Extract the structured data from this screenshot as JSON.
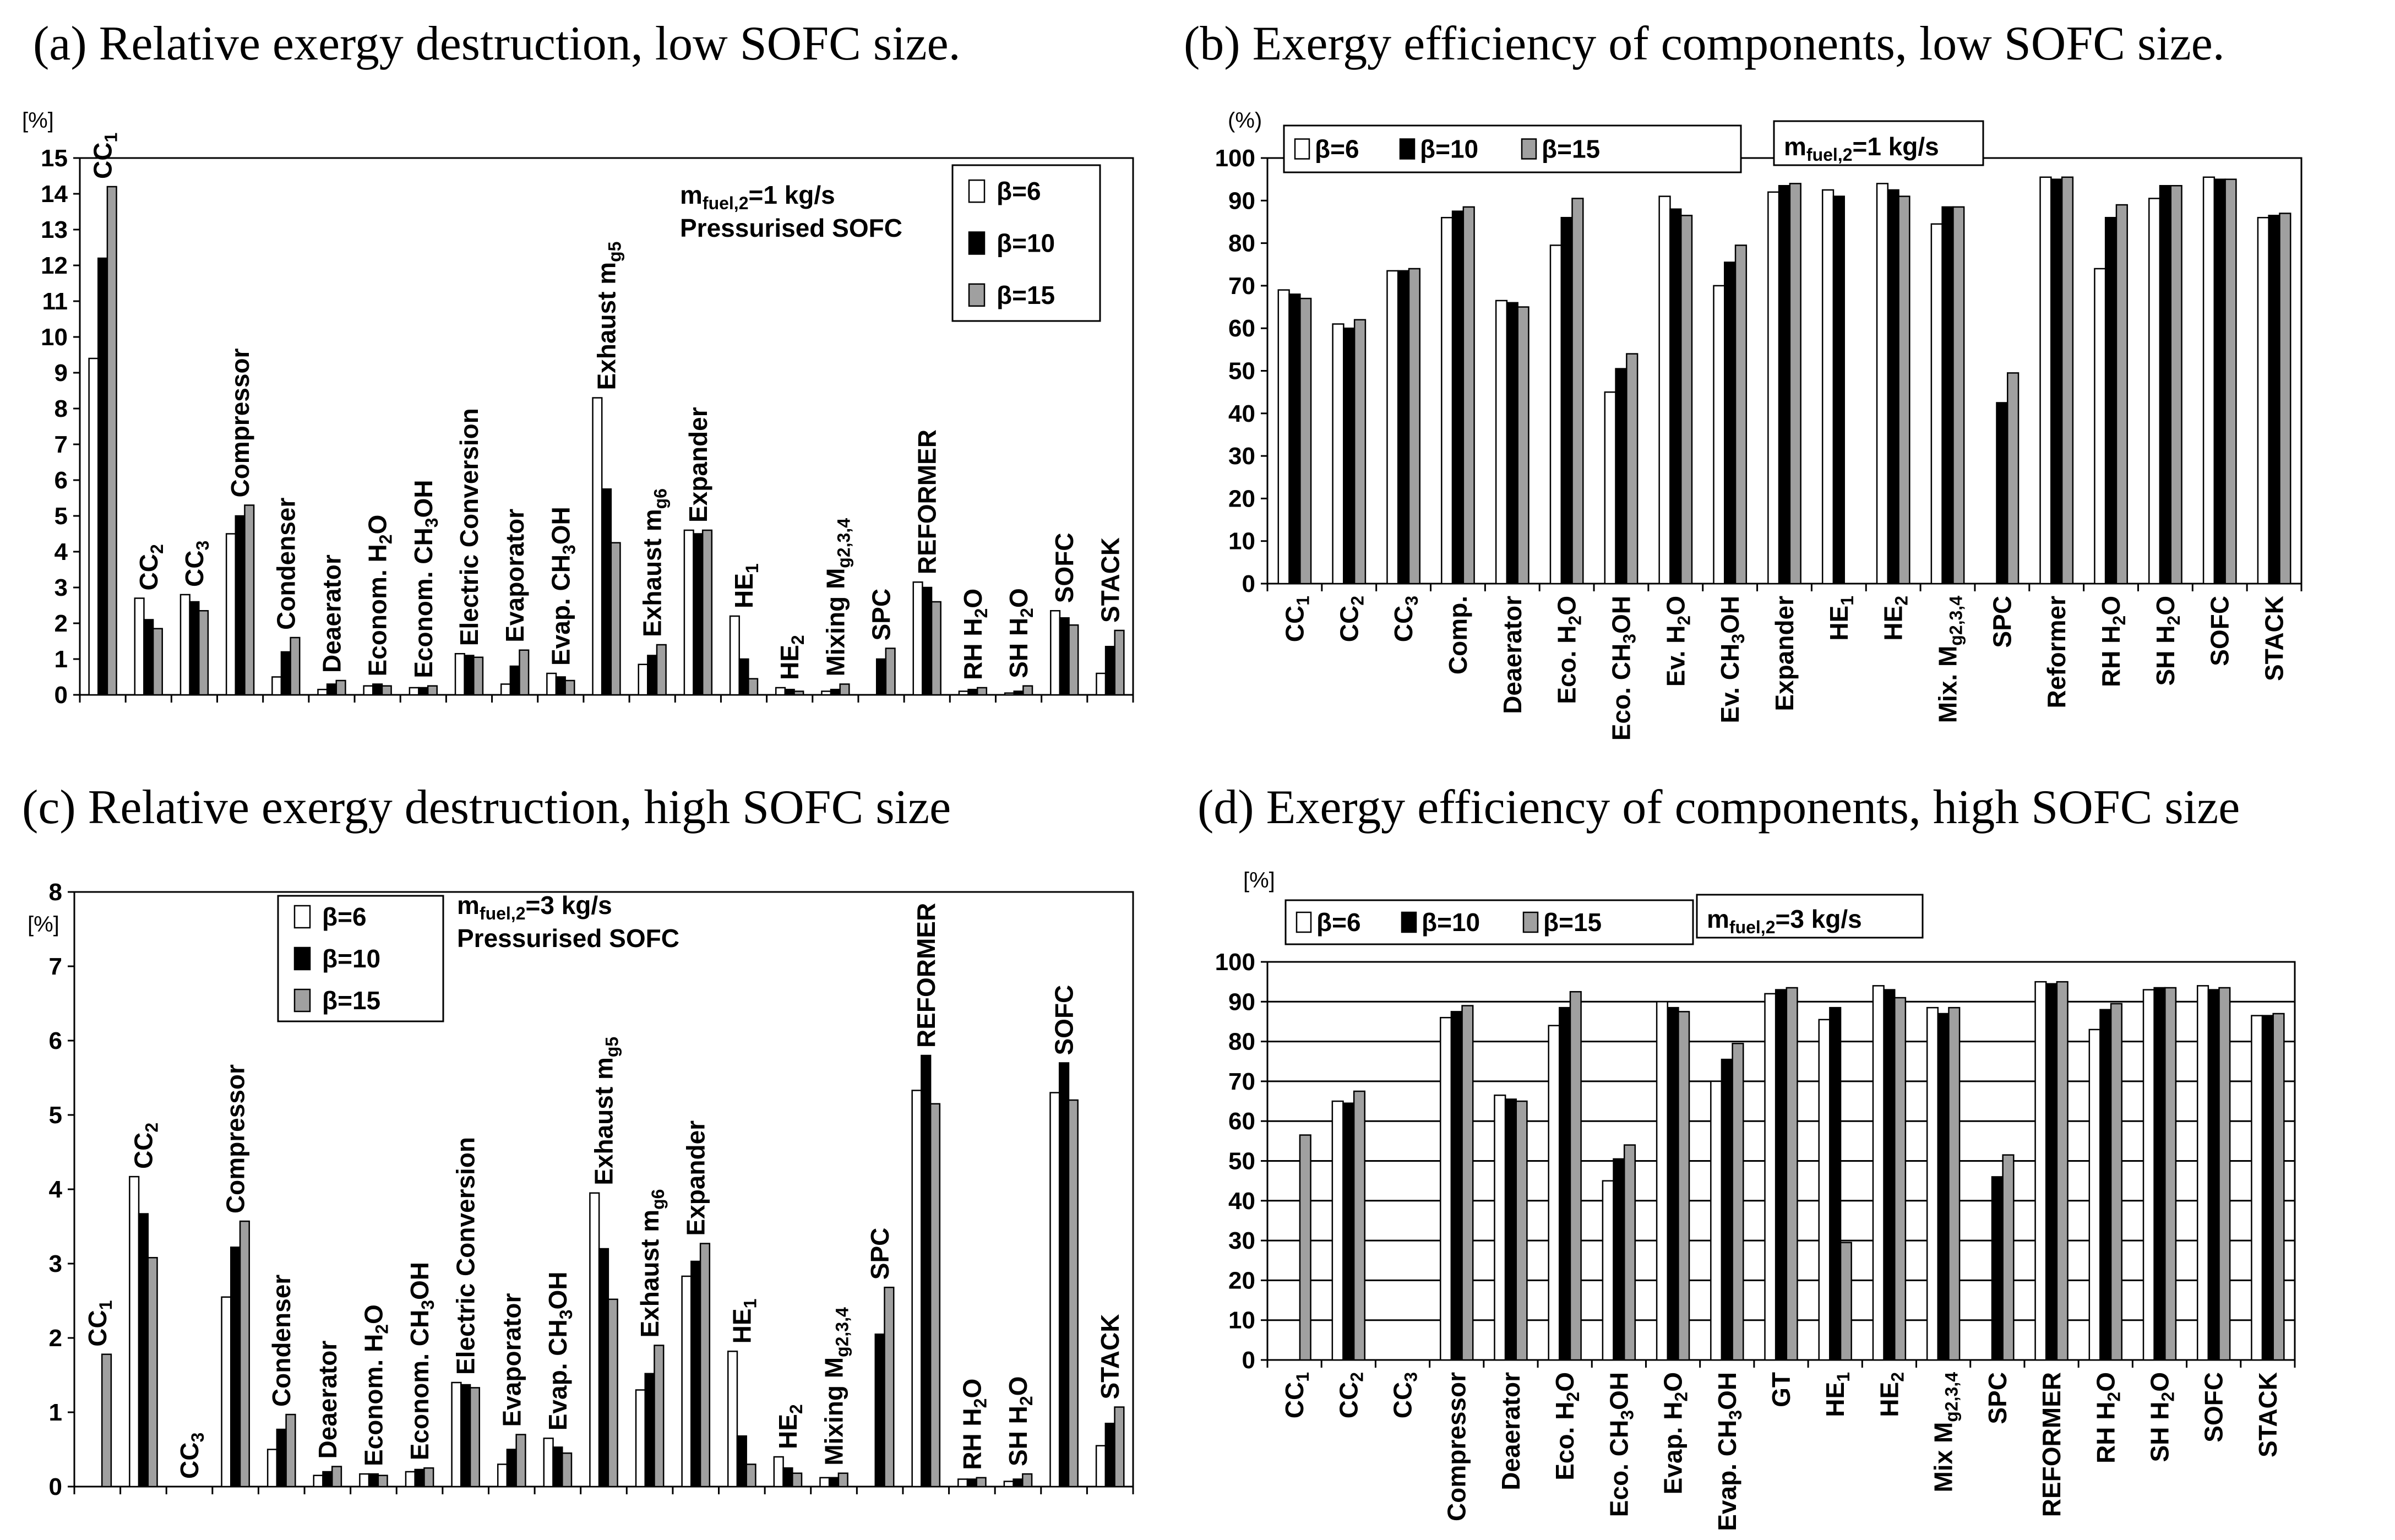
{
  "colors": {
    "beta6": "#ffffff",
    "beta10": "#000000",
    "beta15": "#a0a0a0",
    "stroke": "#000000"
  },
  "chart_data": [
    {
      "id": "a",
      "type": "bar",
      "title": "(a) Relative exergy destruction, low SOFC size.",
      "ylabel": "[%]",
      "ylim": [
        0,
        15
      ],
      "yticks": [
        0,
        1,
        2,
        3,
        4,
        5,
        6,
        7,
        8,
        9,
        10,
        11,
        12,
        13,
        14,
        15
      ],
      "grid": false,
      "label_mode": "above",
      "series_names": [
        "β=6",
        "β=10",
        "β=15"
      ],
      "annotation": [
        "mfuel,2=1 kg/s",
        "Pressurised SOFC"
      ],
      "legend_position": "top-right",
      "categories": [
        {
          "text": "CC1",
          "values": [
            9.4,
            12.2,
            14.2
          ]
        },
        {
          "text": "CC2",
          "values": [
            2.7,
            2.1,
            1.85
          ]
        },
        {
          "text": "CC3",
          "values": [
            2.8,
            2.6,
            2.35
          ]
        },
        {
          "text": "Compressor",
          "values": [
            4.5,
            5.0,
            5.3
          ]
        },
        {
          "text": "Condenser",
          "values": [
            0.5,
            1.2,
            1.6
          ]
        },
        {
          "text": "Deaerator",
          "values": [
            0.15,
            0.3,
            0.4
          ]
        },
        {
          "text": "Econom. H2O",
          "values": [
            0.25,
            0.3,
            0.25
          ]
        },
        {
          "text": "Econom. CH3OH",
          "values": [
            0.2,
            0.2,
            0.25
          ]
        },
        {
          "text": "Electric Conversion",
          "values": [
            1.15,
            1.1,
            1.05
          ]
        },
        {
          "text": "Evaporator",
          "values": [
            0.3,
            0.8,
            1.25
          ]
        },
        {
          "text": "Evap. CH3OH",
          "values": [
            0.6,
            0.5,
            0.4
          ]
        },
        {
          "text": "Exhaust mg5",
          "values": [
            8.3,
            5.75,
            4.25
          ]
        },
        {
          "text": "Exhaust mg6",
          "values": [
            0.85,
            1.1,
            1.4
          ]
        },
        {
          "text": "Expander",
          "values": [
            4.6,
            4.5,
            4.6
          ]
        },
        {
          "text": "HE1",
          "values": [
            2.2,
            1.0,
            0.45
          ]
        },
        {
          "text": "HE2",
          "values": [
            0.2,
            0.15,
            0.1
          ]
        },
        {
          "text": "Mixing  Mg2,3,4",
          "values": [
            0.1,
            0.15,
            0.3
          ]
        },
        {
          "text": "SPC",
          "values": [
            0.0,
            1.0,
            1.3
          ]
        },
        {
          "text": "REFORMER",
          "values": [
            3.15,
            3.0,
            2.6
          ]
        },
        {
          "text": "RH H2O",
          "values": [
            0.1,
            0.15,
            0.2
          ]
        },
        {
          "text": "SH H2O",
          "values": [
            0.05,
            0.1,
            0.25
          ]
        },
        {
          "text": "SOFC",
          "values": [
            2.35,
            2.15,
            1.95
          ]
        },
        {
          "text": "STACK",
          "values": [
            0.6,
            1.35,
            1.8
          ]
        }
      ]
    },
    {
      "id": "b",
      "type": "bar",
      "title": "(b) Exergy efficiency of components, low SOFC size.",
      "ylabel": "(%)",
      "ylim": [
        0,
        100
      ],
      "yticks": [
        0,
        10,
        20,
        30,
        40,
        50,
        60,
        70,
        80,
        90,
        100
      ],
      "grid": false,
      "label_mode": "below",
      "series_names": [
        "β=6",
        "β=10",
        "β=15"
      ],
      "annotation": [
        "mfuel,2=1 kg/s"
      ],
      "legend_position": "top",
      "categories": [
        {
          "text": "CC1",
          "values": [
            69,
            68,
            67
          ]
        },
        {
          "text": "CC2",
          "values": [
            61,
            60,
            62
          ]
        },
        {
          "text": "CC3",
          "values": [
            73.5,
            73.5,
            74
          ]
        },
        {
          "text": "Comp.",
          "values": [
            86,
            87.5,
            88.5
          ]
        },
        {
          "text": "Deaerator",
          "values": [
            66.5,
            66,
            65
          ]
        },
        {
          "text": "Eco. H2O",
          "values": [
            79.5,
            86,
            90.5
          ]
        },
        {
          "text": "Eco. CH3OH",
          "values": [
            45,
            50.5,
            54
          ]
        },
        {
          "text": "Ev. H2O",
          "values": [
            91,
            88,
            86.5
          ]
        },
        {
          "text": "Ev. CH3OH",
          "values": [
            70,
            75.5,
            79.5
          ]
        },
        {
          "text": "Expander",
          "values": [
            92,
            93.5,
            94
          ]
        },
        {
          "text": "HE1",
          "values": [
            92.5,
            91,
            0
          ]
        },
        {
          "text": "HE2",
          "values": [
            94,
            92.5,
            91
          ]
        },
        {
          "text": "Mix. Mg2,3,4",
          "values": [
            84.5,
            88.5,
            88.5
          ]
        },
        {
          "text": "SPC",
          "values": [
            0,
            42.5,
            49.5
          ]
        },
        {
          "text": "Reformer",
          "values": [
            95.5,
            95,
            95.5
          ]
        },
        {
          "text": "RH H2O",
          "values": [
            74,
            86,
            89
          ]
        },
        {
          "text": "SH H2O",
          "values": [
            90.5,
            93.5,
            93.5
          ]
        },
        {
          "text": "SOFC",
          "values": [
            95.5,
            95,
            95
          ]
        },
        {
          "text": "STACK",
          "values": [
            86,
            86.5,
            87
          ]
        }
      ]
    },
    {
      "id": "c",
      "type": "bar",
      "title": "(c) Relative exergy destruction, high SOFC size",
      "ylabel": "[%]",
      "ylim": [
        0,
        8
      ],
      "yticks": [
        0,
        1,
        2,
        3,
        4,
        5,
        6,
        7,
        8
      ],
      "grid": false,
      "label_mode": "above",
      "series_names": [
        "β=6",
        "β=10",
        "β=15"
      ],
      "annotation": [
        "mfuel,2=3 kg/s",
        "Pressurised SOFC"
      ],
      "legend_position": "top-left",
      "categories": [
        {
          "text": "CC1",
          "values": [
            0,
            0,
            1.78
          ]
        },
        {
          "text": "CC2",
          "values": [
            4.17,
            3.67,
            3.08
          ]
        },
        {
          "text": "CC3",
          "values": [
            0,
            0,
            0
          ]
        },
        {
          "text": "Compressor",
          "values": [
            2.55,
            3.22,
            3.57
          ]
        },
        {
          "text": "Condenser",
          "values": [
            0.5,
            0.77,
            0.97
          ]
        },
        {
          "text": "Deaerator",
          "values": [
            0.15,
            0.2,
            0.27
          ]
        },
        {
          "text": "Econom. H2O",
          "values": [
            0.17,
            0.17,
            0.15
          ]
        },
        {
          "text": "Econom. CH3OH",
          "values": [
            0.2,
            0.23,
            0.25
          ]
        },
        {
          "text": "Electric Conversion",
          "values": [
            1.4,
            1.37,
            1.33
          ]
        },
        {
          "text": "Evaporator",
          "values": [
            0.3,
            0.5,
            0.7
          ]
        },
        {
          "text": "Evap. CH3OH",
          "values": [
            0.65,
            0.53,
            0.45
          ]
        },
        {
          "text": "Exhaust mg5",
          "values": [
            3.95,
            3.2,
            2.52
          ]
        },
        {
          "text": "Exhaust mg6",
          "values": [
            1.3,
            1.52,
            1.9
          ]
        },
        {
          "text": "Expander",
          "values": [
            2.83,
            3.03,
            3.27
          ]
        },
        {
          "text": "HE1",
          "values": [
            1.82,
            0.68,
            0.3
          ]
        },
        {
          "text": "HE2",
          "values": [
            0.4,
            0.25,
            0.18
          ]
        },
        {
          "text": "Mixing  Mg2,3,4",
          "values": [
            0.12,
            0.12,
            0.18
          ]
        },
        {
          "text": "SPC",
          "values": [
            0,
            2.05,
            2.68
          ]
        },
        {
          "text": "REFORMER",
          "values": [
            5.33,
            5.8,
            5.15
          ]
        },
        {
          "text": "RH H2O",
          "values": [
            0.1,
            0.1,
            0.12
          ]
        },
        {
          "text": "SH H2O",
          "values": [
            0.07,
            0.1,
            0.17
          ]
        },
        {
          "text": "SOFC",
          "values": [
            5.3,
            5.7,
            5.2
          ]
        },
        {
          "text": "STACK",
          "values": [
            0.55,
            0.85,
            1.07
          ]
        }
      ]
    },
    {
      "id": "d",
      "type": "bar",
      "title": "(d) Exergy efficiency of components, high SOFC size",
      "ylabel": "[%]",
      "ylim": [
        0,
        100
      ],
      "yticks": [
        0,
        10,
        20,
        30,
        40,
        50,
        60,
        70,
        80,
        90,
        100
      ],
      "grid": true,
      "label_mode": "below",
      "series_names": [
        "β=6",
        "β=10",
        "β=15"
      ],
      "annotation": [
        "mfuel,2=3 kg/s"
      ],
      "legend_position": "top",
      "categories": [
        {
          "text": "CC1",
          "values": [
            0,
            0,
            56.5
          ]
        },
        {
          "text": "CC2",
          "values": [
            65,
            64.5,
            67.5
          ]
        },
        {
          "text": "CC3",
          "values": [
            0,
            0,
            0
          ]
        },
        {
          "text": "Compressor",
          "values": [
            86,
            87.5,
            89
          ]
        },
        {
          "text": "Deaerator",
          "values": [
            66.5,
            65.5,
            65
          ]
        },
        {
          "text": "Eco. H2O",
          "values": [
            84,
            88.5,
            92.5
          ]
        },
        {
          "text": "Eco. CH3OH",
          "values": [
            45,
            50.5,
            54
          ]
        },
        {
          "text": "Evap. H2O",
          "values": [
            90,
            88.5,
            87.5
          ]
        },
        {
          "text": "Evap. CH3OH",
          "values": [
            70,
            75.5,
            79.5
          ]
        },
        {
          "text": "GT",
          "values": [
            92,
            93,
            93.5
          ]
        },
        {
          "text": "HE1",
          "values": [
            85.5,
            88.5,
            29.5
          ]
        },
        {
          "text": "HE2",
          "values": [
            94,
            93,
            91
          ]
        },
        {
          "text": "Mix Mg2,3,4",
          "values": [
            88.5,
            87,
            88.5
          ]
        },
        {
          "text": "SPC",
          "values": [
            0,
            46,
            51.5
          ]
        },
        {
          "text": "REFORMER",
          "values": [
            95,
            94.5,
            95
          ]
        },
        {
          "text": "RH H2O",
          "values": [
            83,
            88,
            89.5
          ]
        },
        {
          "text": "SH H2O",
          "values": [
            93,
            93.5,
            93.5
          ]
        },
        {
          "text": "SOFC",
          "values": [
            94,
            93,
            93.5
          ]
        },
        {
          "text": "STACK",
          "values": [
            86.5,
            86.5,
            87
          ]
        }
      ]
    }
  ]
}
